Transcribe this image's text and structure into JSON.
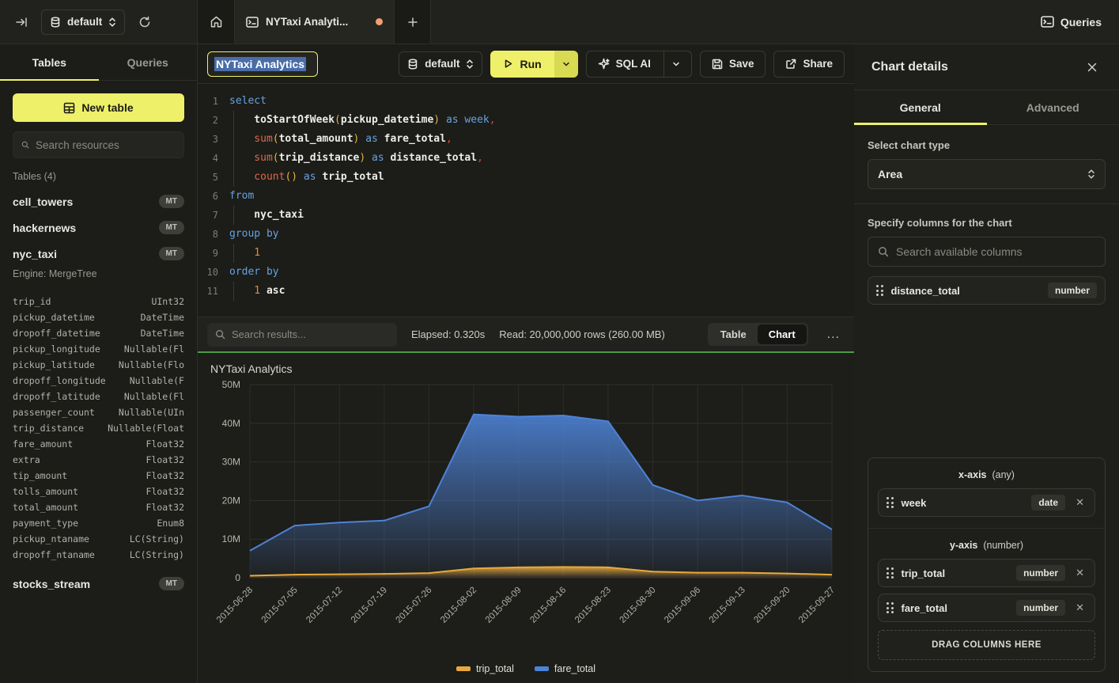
{
  "colors": {
    "accent_yellow": "#eef06a",
    "run_chevron_yellow": "#d8da52",
    "green_divider": "#4e9a47",
    "series_blue": "#4d82d6",
    "series_yellow": "#e8a93c",
    "selection_blue": "#4a6da8",
    "tab_dot_orange": "#f0a070"
  },
  "topbar": {
    "database_selector": "default",
    "tab_title": "NYTaxi Analyti...",
    "queries_label": "Queries"
  },
  "sidebar": {
    "tabs": [
      {
        "label": "Tables"
      },
      {
        "label": "Queries"
      }
    ],
    "new_table_label": "New table",
    "search_placeholder": "Search resources",
    "section_title": "Tables (4)",
    "tables": [
      {
        "name": "cell_towers",
        "badge": "MT"
      },
      {
        "name": "hackernews",
        "badge": "MT"
      },
      {
        "name": "nyc_taxi",
        "badge": "MT",
        "engine": "Engine: MergeTree",
        "columns": [
          {
            "name": "trip_id",
            "type": "UInt32"
          },
          {
            "name": "pickup_datetime",
            "type": "DateTime"
          },
          {
            "name": "dropoff_datetime",
            "type": "DateTime"
          },
          {
            "name": "pickup_longitude",
            "type": "Nullable(Fl"
          },
          {
            "name": "pickup_latitude",
            "type": "Nullable(Flo"
          },
          {
            "name": "dropoff_longitude",
            "type": "Nullable(F"
          },
          {
            "name": "dropoff_latitude",
            "type": "Nullable(Fl"
          },
          {
            "name": "passenger_count",
            "type": "Nullable(UIn"
          },
          {
            "name": "trip_distance",
            "type": "Nullable(Float"
          },
          {
            "name": "fare_amount",
            "type": "Float32"
          },
          {
            "name": "extra",
            "type": "Float32"
          },
          {
            "name": "tip_amount",
            "type": "Float32"
          },
          {
            "name": "tolls_amount",
            "type": "Float32"
          },
          {
            "name": "total_amount",
            "type": "Float32"
          },
          {
            "name": "payment_type",
            "type": "Enum8"
          },
          {
            "name": "pickup_ntaname",
            "type": "LC(String)"
          },
          {
            "name": "dropoff_ntaname",
            "type": "LC(String)"
          }
        ]
      },
      {
        "name": "stocks_stream",
        "badge": "MT"
      }
    ]
  },
  "query_header": {
    "title_value": "NYTaxi Analytics",
    "database_selector": "default",
    "run_label": "Run",
    "sql_ai_label": "SQL AI",
    "save_label": "Save",
    "share_label": "Share"
  },
  "editor": {
    "lines": [
      {
        "n": "1",
        "ind": false,
        "tokens": [
          {
            "t": "select",
            "c": "kw"
          }
        ]
      },
      {
        "n": "2",
        "ind": true,
        "tokens": [
          {
            "t": "toStartOfWeek",
            "c": "id"
          },
          {
            "t": "(",
            "c": "pa"
          },
          {
            "t": "pickup_datetime",
            "c": "id"
          },
          {
            "t": ")",
            "c": "pa"
          },
          {
            "t": " ",
            "c": "sp"
          },
          {
            "t": "as",
            "c": "kw"
          },
          {
            "t": " ",
            "c": "sp"
          },
          {
            "t": "week",
            "c": "kw"
          },
          {
            "t": ",",
            "c": "cm"
          }
        ]
      },
      {
        "n": "3",
        "ind": true,
        "tokens": [
          {
            "t": "sum",
            "c": "fn"
          },
          {
            "t": "(",
            "c": "pa"
          },
          {
            "t": "total_amount",
            "c": "id"
          },
          {
            "t": ")",
            "c": "pa"
          },
          {
            "t": " ",
            "c": "sp"
          },
          {
            "t": "as",
            "c": "kw"
          },
          {
            "t": " ",
            "c": "sp"
          },
          {
            "t": "fare_total",
            "c": "id"
          },
          {
            "t": ",",
            "c": "cm"
          }
        ]
      },
      {
        "n": "4",
        "ind": true,
        "tokens": [
          {
            "t": "sum",
            "c": "fn"
          },
          {
            "t": "(",
            "c": "pa"
          },
          {
            "t": "trip_distance",
            "c": "id"
          },
          {
            "t": ")",
            "c": "pa"
          },
          {
            "t": " ",
            "c": "sp"
          },
          {
            "t": "as",
            "c": "kw"
          },
          {
            "t": " ",
            "c": "sp"
          },
          {
            "t": "distance_total",
            "c": "id"
          },
          {
            "t": ",",
            "c": "cm"
          }
        ]
      },
      {
        "n": "5",
        "ind": true,
        "tokens": [
          {
            "t": "count",
            "c": "fn"
          },
          {
            "t": "()",
            "c": "pa"
          },
          {
            "t": " ",
            "c": "sp"
          },
          {
            "t": "as",
            "c": "kw"
          },
          {
            "t": " ",
            "c": "sp"
          },
          {
            "t": "trip_total",
            "c": "id"
          }
        ]
      },
      {
        "n": "6",
        "ind": false,
        "tokens": [
          {
            "t": "from",
            "c": "kw"
          }
        ]
      },
      {
        "n": "7",
        "ind": true,
        "tokens": [
          {
            "t": "nyc_taxi",
            "c": "id"
          }
        ]
      },
      {
        "n": "8",
        "ind": false,
        "tokens": [
          {
            "t": "group by",
            "c": "kw"
          }
        ]
      },
      {
        "n": "9",
        "ind": true,
        "tokens": [
          {
            "t": "1",
            "c": "num"
          }
        ]
      },
      {
        "n": "10",
        "ind": false,
        "tokens": [
          {
            "t": "order by",
            "c": "kw"
          }
        ]
      },
      {
        "n": "11",
        "ind": true,
        "tokens": [
          {
            "t": "1",
            "c": "num"
          },
          {
            "t": " ",
            "c": "sp"
          },
          {
            "t": "asc",
            "c": "id"
          }
        ]
      }
    ]
  },
  "results_bar": {
    "search_placeholder": "Search results...",
    "elapsed": "Elapsed: 0.320s",
    "read": "Read: 20,000,000 rows (260.00 MB)",
    "views": [
      {
        "label": "Table"
      },
      {
        "label": "Chart"
      }
    ],
    "active_view": "Chart",
    "more_label": "..."
  },
  "chart_data": {
    "type": "area",
    "title": "NYTaxi Analytics",
    "unit": "millions",
    "x": [
      "2015-06-28",
      "2015-07-05",
      "2015-07-12",
      "2015-07-19",
      "2015-07-26",
      "2015-08-02",
      "2015-08-09",
      "2015-08-16",
      "2015-08-23",
      "2015-08-30",
      "2015-09-06",
      "2015-09-13",
      "2015-09-20",
      "2015-09-27"
    ],
    "series": [
      {
        "name": "fare_total",
        "color": "#4d82d6",
        "values": [
          7,
          13.5,
          14.3,
          14.8,
          18.5,
          42.3,
          41.7,
          42,
          40.5,
          24,
          20,
          21.3,
          19.5,
          12.5
        ]
      },
      {
        "name": "trip_total",
        "color": "#e8a93c",
        "values": [
          0.5,
          0.8,
          0.9,
          1.0,
          1.2,
          2.4,
          2.7,
          2.8,
          2.7,
          1.6,
          1.3,
          1.3,
          1.1,
          0.8
        ]
      }
    ],
    "ylim": [
      0,
      50
    ],
    "yticks": [
      {
        "v": 0,
        "label": "0"
      },
      {
        "v": 10,
        "label": "10M"
      },
      {
        "v": 20,
        "label": "20M"
      },
      {
        "v": 30,
        "label": "30M"
      },
      {
        "v": 40,
        "label": "40M"
      },
      {
        "v": 50,
        "label": "50M"
      }
    ],
    "grid": true,
    "legend_position": "bottom",
    "legend": [
      "trip_total",
      "fare_total"
    ]
  },
  "chart_panel": {
    "title": "Chart details",
    "tabs": [
      {
        "label": "General"
      },
      {
        "label": "Advanced"
      }
    ],
    "active_tab": "General",
    "chart_type_label": "Select chart type",
    "chart_type_value": "Area",
    "columns_label": "Specify columns for the chart",
    "columns_search_placeholder": "Search available columns",
    "available_columns": [
      {
        "name": "distance_total",
        "type": "number"
      }
    ],
    "x_axis": {
      "title": "x-axis",
      "hint": "(any)",
      "items": [
        {
          "name": "week",
          "type": "date"
        }
      ]
    },
    "y_axis": {
      "title": "y-axis",
      "hint": "(number)",
      "items": [
        {
          "name": "trip_total",
          "type": "number"
        },
        {
          "name": "fare_total",
          "type": "number"
        }
      ]
    },
    "drop_zone_label": "DRAG COLUMNS HERE"
  }
}
